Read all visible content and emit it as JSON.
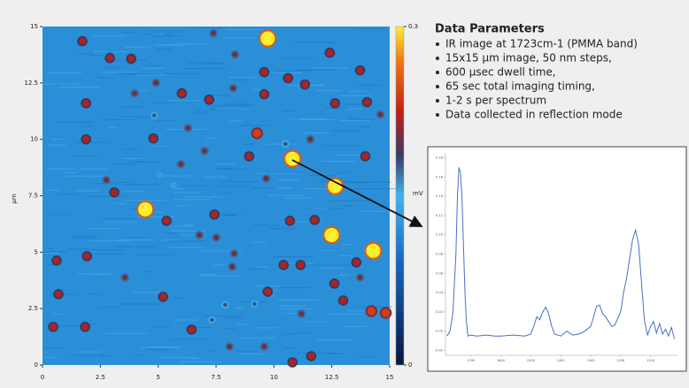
{
  "chart_data": [
    {
      "type": "scatter",
      "y_label": "µm",
      "x": [
        1.72,
        9.73,
        7.39,
        2.91,
        3.83,
        8.31,
        12.41,
        13.72,
        9.58,
        10.61,
        11.34,
        4.9,
        1.88,
        6.02,
        8.24,
        3.98,
        7.2,
        9.58,
        12.64,
        14.02,
        14.6,
        4.83,
        6.28,
        1.88,
        4.79,
        9.27,
        10.5,
        11.57,
        7.0,
        10.8,
        8.93,
        13.95,
        5.98,
        5.06,
        2.76,
        9.66,
        12.64,
        3.1,
        5.67,
        4.44,
        7.43,
        5.36,
        10.69,
        11.76,
        12.49,
        6.78,
        7.51,
        0.61,
        1.92,
        14.29,
        13.56,
        8.28,
        10.42,
        11.15,
        8.2,
        3.56,
        12.61,
        13.72,
        9.73,
        0.69,
        5.21,
        12.99,
        7.89,
        9.16,
        14.21,
        14.83,
        11.19,
        7.32,
        0.46,
        1.84,
        6.44,
        8.08,
        9.58,
        11.61,
        10.8
      ],
      "values": [
        14.35,
        14.47,
        14.7,
        13.6,
        13.57,
        13.76,
        13.84,
        13.06,
        12.98,
        12.71,
        12.43,
        12.51,
        11.6,
        12.04,
        12.27,
        12.04,
        11.76,
        12.0,
        11.6,
        11.65,
        11.1,
        11.06,
        10.5,
        10.0,
        10.04,
        10.27,
        9.8,
        10.0,
        9.49,
        9.14,
        9.25,
        9.25,
        8.9,
        8.43,
        8.2,
        8.27,
        7.92,
        7.65,
        7.96,
        6.9,
        6.67,
        6.39,
        6.39,
        6.43,
        5.76,
        5.76,
        5.65,
        4.63,
        4.82,
        5.06,
        4.55,
        4.94,
        4.43,
        4.43,
        4.35,
        3.88,
        3.61,
        3.88,
        3.25,
        3.14,
        3.02,
        2.86,
        2.67,
        2.71,
        2.39,
        2.31,
        2.27,
        2.0,
        1.69,
        1.69,
        1.57,
        0.82,
        0.82,
        0.39,
        0.12
      ],
      "intensity": [
        0.22,
        0.3,
        0.2,
        0.22,
        0.22,
        0.2,
        0.22,
        0.22,
        0.22,
        0.22,
        0.22,
        0.2,
        0.22,
        0.22,
        0.2,
        0.2,
        0.22,
        0.22,
        0.22,
        0.22,
        0.2,
        0.18,
        0.2,
        0.22,
        0.22,
        0.24,
        0.18,
        0.2,
        0.2,
        0.3,
        0.22,
        0.22,
        0.2,
        0.16,
        0.2,
        0.2,
        0.3,
        0.22,
        0.16,
        0.3,
        0.22,
        0.22,
        0.22,
        0.22,
        0.3,
        0.2,
        0.2,
        0.22,
        0.22,
        0.3,
        0.22,
        0.2,
        0.22,
        0.22,
        0.2,
        0.2,
        0.22,
        0.2,
        0.22,
        0.22,
        0.22,
        0.22,
        0.18,
        0.18,
        0.24,
        0.24,
        0.2,
        0.18,
        0.22,
        0.22,
        0.22,
        0.2,
        0.2,
        0.22,
        0.22
      ],
      "xlim": [
        0,
        15
      ],
      "ylim": [
        0,
        15
      ],
      "xticks": [
        0,
        2.5,
        5,
        7.5,
        10,
        12.5,
        15
      ],
      "yticks": [
        0,
        2.5,
        5,
        7.5,
        10,
        12.5,
        15
      ],
      "clim": [
        0,
        0.3
      ],
      "cticks": [
        0,
        0.3
      ],
      "c_label": "mV"
    },
    {
      "type": "line",
      "color": "#4a6fc4",
      "x": [
        1780,
        1770,
        1760,
        1750,
        1745,
        1740,
        1735,
        1730,
        1725,
        1720,
        1715,
        1710,
        1700,
        1680,
        1650,
        1620,
        1600,
        1560,
        1520,
        1500,
        1490,
        1480,
        1470,
        1460,
        1450,
        1440,
        1430,
        1420,
        1400,
        1380,
        1360,
        1340,
        1320,
        1300,
        1290,
        1280,
        1270,
        1260,
        1250,
        1240,
        1230,
        1220,
        1200,
        1190,
        1180,
        1170,
        1160,
        1150,
        1140,
        1130,
        1120,
        1110,
        1100,
        1090,
        1080,
        1070,
        1060,
        1050,
        1040,
        1030,
        1020
      ],
      "values": [
        -0.005,
        0.0,
        0.02,
        0.08,
        0.14,
        0.17,
        0.165,
        0.14,
        0.09,
        0.04,
        0.01,
        -0.005,
        -0.004,
        -0.005,
        -0.004,
        -0.005,
        -0.005,
        -0.004,
        -0.005,
        -0.003,
        0.005,
        0.015,
        0.012,
        0.02,
        0.025,
        0.018,
        0.005,
        -0.003,
        -0.005,
        0.0,
        -0.004,
        -0.003,
        0.0,
        0.005,
        0.015,
        0.026,
        0.027,
        0.018,
        0.015,
        0.01,
        0.005,
        0.006,
        0.02,
        0.04,
        0.055,
        0.075,
        0.095,
        0.105,
        0.09,
        0.05,
        0.01,
        -0.004,
        0.005,
        0.01,
        -0.002,
        0.008,
        -0.003,
        0.002,
        -0.005,
        0.004,
        -0.008
      ],
      "xlim": [
        1785,
        1010
      ],
      "ylim": [
        -0.025,
        0.185
      ],
      "xticks": [
        1700,
        1600,
        1500,
        1400,
        1300,
        1200,
        1100
      ],
      "yticks": [
        {
          "value": 0.18,
          "label": "0.18"
        },
        {
          "value": 0.16,
          "label": "0.16"
        },
        {
          "value": 0.14,
          "label": "0.14"
        },
        {
          "value": 0.12,
          "label": "0.12"
        },
        {
          "value": 0.1,
          "label": "0.10"
        },
        {
          "value": 0.08,
          "label": "0.08"
        },
        {
          "value": 0.06,
          "label": "0.06"
        },
        {
          "value": 0.04,
          "label": "0.04"
        },
        {
          "value": 0.02,
          "label": "0.02"
        },
        {
          "value": 0,
          "label": "0.00"
        },
        {
          "value": -0.02,
          "label": "-0.02"
        }
      ]
    }
  ],
  "panel": {
    "title": "Data Parameters",
    "items": [
      "IR image at 1723cm-1 (PMMA band)",
      "15x15 µm image, 50 nm steps,",
      "600 µsec dwell time,",
      "65 sec total imaging timing,",
      "1-2 s per spectrum",
      "Data collected in reflection mode"
    ]
  }
}
